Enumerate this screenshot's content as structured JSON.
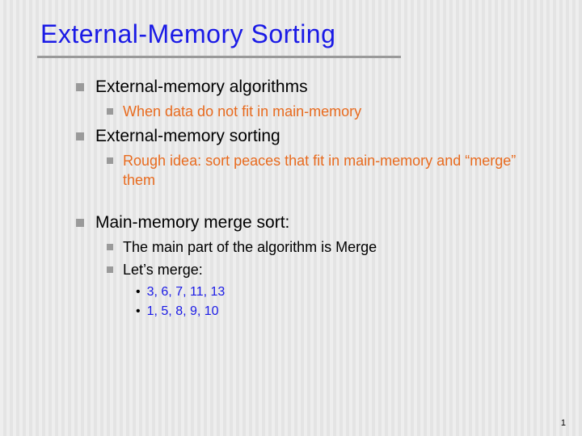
{
  "colors": {
    "title": "#1a1ae6",
    "underline": "#9a9a9a",
    "bullet": "#9a9a9a",
    "text_black": "#000000",
    "text_orange": "#e86b1f",
    "text_blue": "#1a1ae6"
  },
  "title": "External-Memory Sorting",
  "items": {
    "l1_a": "External-memory algorithms",
    "l2_a": "When data do not fit in main-memory",
    "l1_b": "External-memory sorting",
    "l2_b": "Rough idea: sort peaces that fit in main-memory and “merge” them",
    "l1_c": "Main-memory merge sort:",
    "l2_c": "The main part of the algorithm is Merge",
    "l2_d": "Let’s merge:",
    "l3_a": "3, 6, 7, 11, 13",
    "l3_b": "1, 5, 8, 9, 10"
  },
  "page_number": "1"
}
